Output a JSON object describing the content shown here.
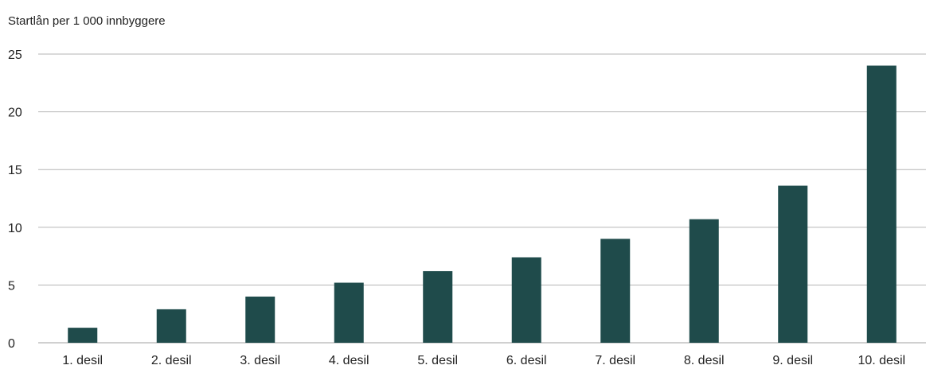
{
  "chart_data": {
    "type": "bar",
    "title": "",
    "xlabel": "",
    "ylabel": "Startlån per 1 000 innbyggere",
    "categories": [
      "1. desil",
      "2. desil",
      "3. desil",
      "4. desil",
      "5. desil",
      "6. desil",
      "7. desil",
      "8. desil",
      "9. desil",
      "10. desil"
    ],
    "values": [
      1.3,
      2.9,
      4.0,
      5.2,
      6.2,
      7.4,
      9.0,
      10.7,
      13.6,
      24.0
    ],
    "ylim": [
      0,
      25
    ],
    "yticks": [
      "0",
      "5",
      "10",
      "15",
      "20",
      "25"
    ],
    "grid": true,
    "bar_color": "#1f4b4b",
    "grid_color": "#b5b5b5"
  }
}
